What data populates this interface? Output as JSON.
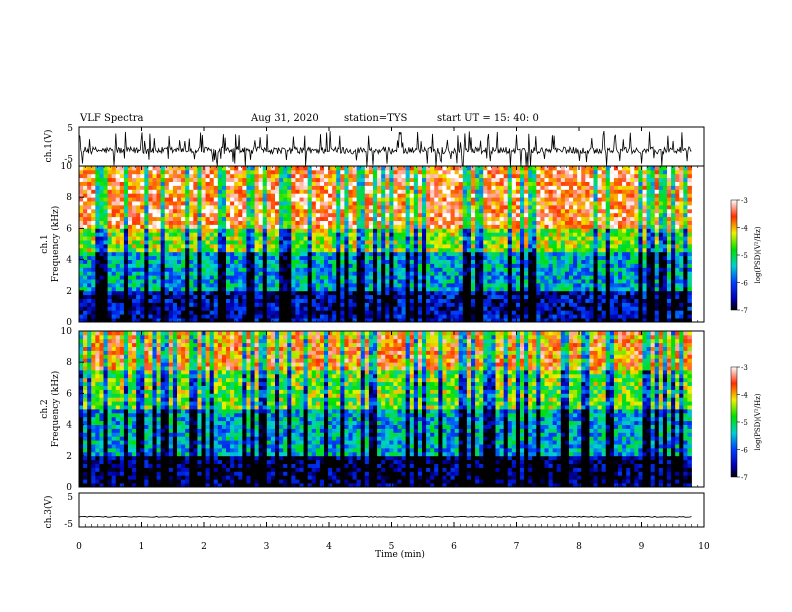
{
  "header": {
    "title": "VLF Spectra",
    "date": "Aug 31, 2020",
    "station": "station=TYS",
    "start": "start UT = 15: 40: 0"
  },
  "chart_data": [
    {
      "type": "line",
      "ylabel": "ch.1(V)",
      "ylim": [
        -5,
        5
      ],
      "yticks": [
        "5",
        "-5"
      ],
      "xlim": [
        0,
        10
      ],
      "description_series": "noisy voltage trace centred near -1 V with frequent spikes",
      "baseline": -1,
      "spike_count": 90
    },
    {
      "type": "heatmap",
      "ylabel_top": "ch.1",
      "ylabel": "Frequency (kHz)",
      "ylim": [
        0,
        10
      ],
      "yticks": [
        "0",
        "2",
        "4",
        "6",
        "8",
        "10"
      ],
      "xlim": [
        0,
        9.8
      ],
      "colorbar": {
        "label": "log(PSD)(V²/Hz)",
        "ticks": [
          "-3",
          "-4",
          "-5",
          "-6",
          "-7"
        ],
        "range": [
          -7,
          -3
        ]
      },
      "bands": [
        {
          "from_khz": 0,
          "to_khz": 2,
          "level": -6.5
        },
        {
          "from_khz": 2,
          "to_khz": 4.5,
          "level": -5.5
        },
        {
          "from_khz": 4.5,
          "to_khz": 6,
          "level": -4.5
        },
        {
          "from_khz": 6,
          "to_khz": 10,
          "level": -3.5
        }
      ]
    },
    {
      "type": "heatmap",
      "ylabel_top": "ch.2",
      "ylabel": "Frequency (kHz)",
      "ylim": [
        0,
        10
      ],
      "yticks": [
        "0",
        "2",
        "4",
        "6",
        "8",
        "10"
      ],
      "xlim": [
        0,
        9.8
      ],
      "colorbar": {
        "label": "log(PSD)(V²/Hz)",
        "ticks": [
          "-3",
          "-4",
          "-5",
          "-6",
          "-7"
        ],
        "range": [
          -7,
          -3
        ]
      },
      "bands": [
        {
          "from_khz": 0,
          "to_khz": 2,
          "level": -6.8
        },
        {
          "from_khz": 2,
          "to_khz": 5,
          "level": -5.5
        },
        {
          "from_khz": 5,
          "to_khz": 7.5,
          "level": -4.6
        },
        {
          "from_khz": 7.5,
          "to_khz": 10,
          "level": -3.8
        }
      ]
    },
    {
      "type": "line",
      "ylabel": "ch.3(V)",
      "ylim": [
        -5,
        5
      ],
      "yticks": [
        "5",
        "-5"
      ],
      "xlim": [
        0,
        9.8
      ],
      "baseline": -2
    }
  ],
  "xaxis": {
    "label": "Time (min)",
    "ticks": [
      "0",
      "1",
      "2",
      "3",
      "4",
      "5",
      "6",
      "7",
      "8",
      "9",
      "10"
    ],
    "xlim": [
      0,
      10
    ]
  }
}
